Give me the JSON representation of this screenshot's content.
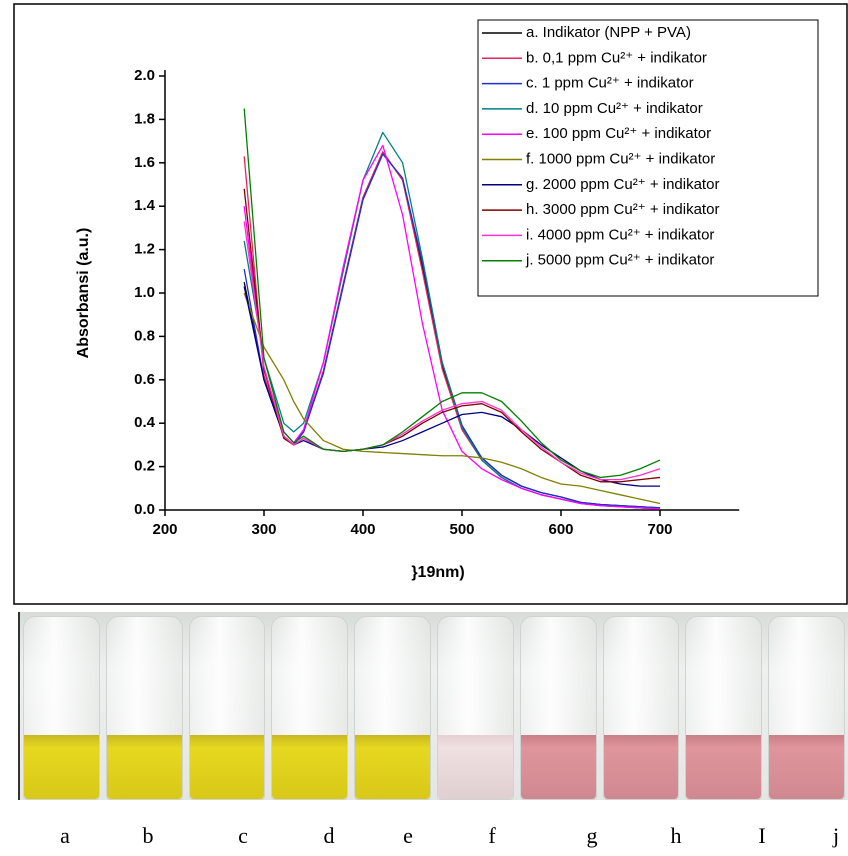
{
  "chart_data": {
    "type": "line",
    "x_label": "}19nm)",
    "y_label": "Absorbansi (a.u.)",
    "xlim": [
      200,
      780
    ],
    "ylim": [
      0,
      2.0
    ],
    "xticks": [
      200,
      300,
      400,
      500,
      600,
      700
    ],
    "yticks": [
      {
        "value": 0,
        "label": "0.0"
      },
      0.2,
      0.4,
      0.6,
      0.8,
      {
        "value": 1,
        "label": "1.0"
      },
      1.2,
      1.4,
      1.6,
      1.8,
      {
        "value": 2,
        "label": "2.0"
      }
    ],
    "legend": "upper right",
    "x": [
      280,
      300,
      320,
      330,
      340,
      360,
      380,
      400,
      420,
      440,
      460,
      480,
      500,
      520,
      540,
      560,
      580,
      600,
      620,
      640,
      660,
      680,
      700
    ],
    "series": [
      {
        "name": "a. Indikator (NPP + PVA)",
        "color": "#000000",
        "values": [
          1.05,
          0.6,
          0.34,
          0.3,
          0.36,
          0.64,
          1.04,
          1.44,
          1.65,
          1.52,
          1.12,
          0.66,
          0.38,
          0.24,
          0.16,
          0.11,
          0.08,
          0.06,
          0.035,
          0.025,
          0.02,
          0.015,
          0.01
        ]
      },
      {
        "name": "b. 0,1 ppm Cu²⁺ + indikator",
        "color": "#e8245c",
        "values": [
          1.63,
          0.62,
          0.34,
          0.3,
          0.36,
          0.64,
          1.04,
          1.44,
          1.65,
          1.52,
          1.1,
          0.65,
          0.37,
          0.23,
          0.15,
          0.1,
          0.07,
          0.05,
          0.03,
          0.02,
          0.015,
          0.01,
          0.005
        ]
      },
      {
        "name": "c. 1 ppm Cu²⁺ + indikator",
        "color": "#1f2fd6",
        "values": [
          1.11,
          0.6,
          0.34,
          0.3,
          0.36,
          0.63,
          1.03,
          1.43,
          1.64,
          1.53,
          1.14,
          0.68,
          0.39,
          0.24,
          0.16,
          0.11,
          0.08,
          0.06,
          0.035,
          0.025,
          0.02,
          0.015,
          0.01
        ]
      },
      {
        "name": "d. 10 ppm Cu²⁺ + indikator",
        "color": "#008080",
        "values": [
          1.24,
          0.7,
          0.4,
          0.36,
          0.4,
          0.68,
          1.1,
          1.52,
          1.74,
          1.6,
          1.16,
          0.68,
          0.38,
          0.23,
          0.15,
          0.1,
          0.07,
          0.05,
          0.03,
          0.02,
          0.015,
          0.01,
          0.005
        ]
      },
      {
        "name": "e. 100 ppm Cu²⁺ + indikator",
        "color": "#ff00ff",
        "values": [
          1.4,
          0.65,
          0.36,
          0.31,
          0.37,
          0.68,
          1.12,
          1.52,
          1.68,
          1.36,
          0.86,
          0.46,
          0.27,
          0.19,
          0.14,
          0.1,
          0.07,
          0.05,
          0.03,
          0.02,
          0.015,
          0.01,
          0.005
        ]
      },
      {
        "name": "f. 1000 ppm Cu²⁺ + indikator",
        "color": "#808000",
        "values": [
          1.0,
          0.75,
          0.6,
          0.5,
          0.42,
          0.32,
          0.28,
          0.27,
          0.265,
          0.26,
          0.255,
          0.25,
          0.25,
          0.24,
          0.22,
          0.19,
          0.15,
          0.12,
          0.11,
          0.09,
          0.07,
          0.05,
          0.03
        ]
      },
      {
        "name": "g. 2000 ppm Cu²⁺ + indikator",
        "color": "#000080",
        "values": [
          1.03,
          0.6,
          0.34,
          0.3,
          0.32,
          0.28,
          0.27,
          0.28,
          0.29,
          0.32,
          0.36,
          0.4,
          0.44,
          0.45,
          0.43,
          0.37,
          0.3,
          0.24,
          0.18,
          0.14,
          0.12,
          0.11,
          0.11
        ]
      },
      {
        "name": "h. 3000 ppm Cu²⁺ + indikator",
        "color": "#800000",
        "values": [
          1.48,
          0.65,
          0.33,
          0.3,
          0.33,
          0.28,
          0.27,
          0.28,
          0.3,
          0.34,
          0.4,
          0.45,
          0.48,
          0.49,
          0.45,
          0.36,
          0.28,
          0.22,
          0.16,
          0.13,
          0.13,
          0.14,
          0.15
        ]
      },
      {
        "name": "i. 4000 ppm Cu²⁺ + indikator",
        "color": "#ff33cc",
        "values": [
          1.33,
          0.66,
          0.34,
          0.3,
          0.33,
          0.28,
          0.27,
          0.28,
          0.3,
          0.35,
          0.41,
          0.46,
          0.49,
          0.5,
          0.46,
          0.37,
          0.29,
          0.22,
          0.17,
          0.14,
          0.14,
          0.16,
          0.19
        ]
      },
      {
        "name": "j. 5000 ppm Cu²⁺ + indikator",
        "color": "#008000",
        "values": [
          1.85,
          0.7,
          0.36,
          0.31,
          0.34,
          0.28,
          0.27,
          0.28,
          0.3,
          0.36,
          0.43,
          0.5,
          0.54,
          0.54,
          0.5,
          0.41,
          0.31,
          0.23,
          0.18,
          0.15,
          0.16,
          0.19,
          0.23
        ]
      }
    ]
  },
  "photo": {
    "labels": [
      "a",
      "b",
      "c",
      "d",
      "e",
      "f",
      "g",
      "h",
      "I",
      "j"
    ]
  }
}
